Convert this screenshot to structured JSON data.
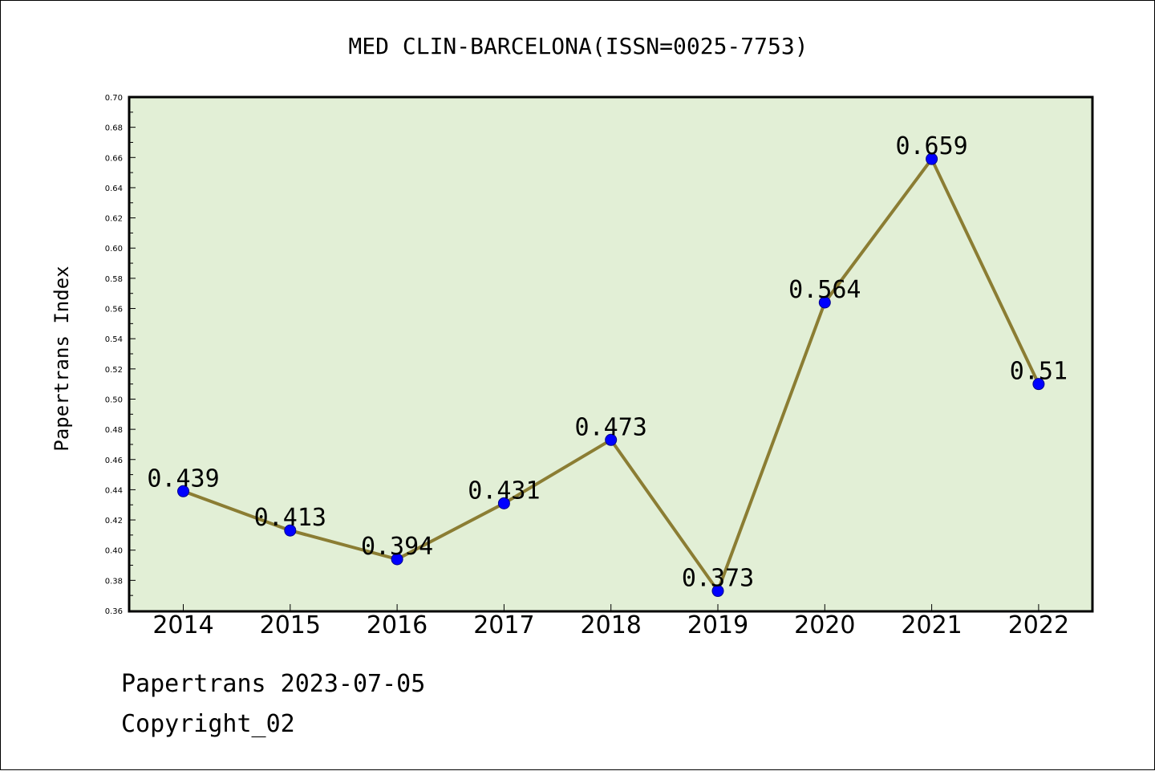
{
  "chart_data": {
    "type": "line",
    "title": "MED CLIN-BARCELONA(ISSN=0025-7753)",
    "ylabel": "Papertrans Index",
    "xlabel": "",
    "categories": [
      "2014",
      "2015",
      "2016",
      "2017",
      "2018",
      "2019",
      "2020",
      "2021",
      "2022"
    ],
    "values": [
      0.439,
      0.413,
      0.394,
      0.431,
      0.473,
      0.373,
      0.564,
      0.659,
      0.51
    ],
    "data_labels": [
      "0.439",
      "0.413",
      "0.394",
      "0.431",
      "0.473",
      "0.373",
      "0.564",
      "0.659",
      "0.51"
    ],
    "ylim": [
      0.36,
      0.7
    ],
    "yticks": [
      "0.36",
      "0.38",
      "0.40",
      "0.42",
      "0.44",
      "0.46",
      "0.48",
      "0.50",
      "0.52",
      "0.54",
      "0.56",
      "0.58",
      "0.60",
      "0.62",
      "0.64",
      "0.66",
      "0.68",
      "0.70"
    ],
    "grid": false,
    "colors": {
      "plot_background": "#e2efd6",
      "line": "#8b7d33",
      "marker": "#0000ff"
    }
  },
  "footer": {
    "date_line": "Papertrans 2023-07-05",
    "copyright": "Copyright_02"
  }
}
